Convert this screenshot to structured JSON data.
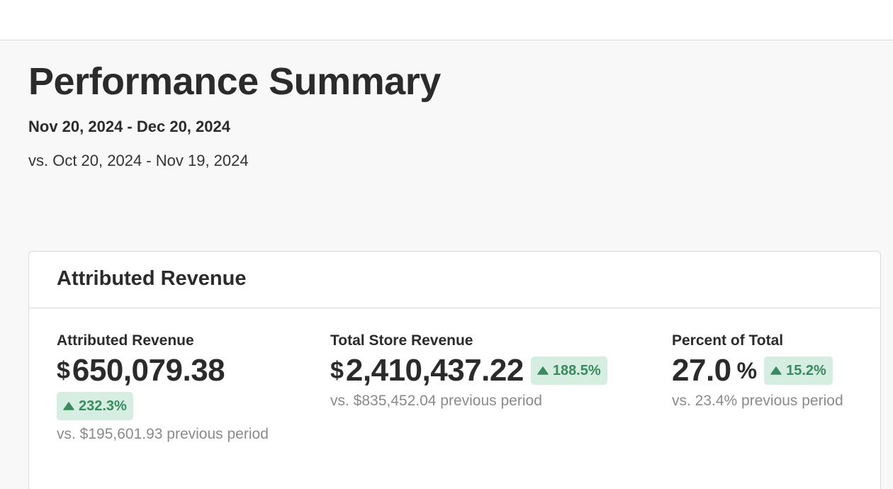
{
  "header": {
    "title": "Performance Summary",
    "date_range": "Nov 20, 2024 - Dec 20, 2024",
    "compare_range": "vs. Oct 20, 2024 - Nov 19, 2024"
  },
  "card": {
    "title": "Attributed Revenue",
    "metrics": [
      {
        "label": "Attributed Revenue",
        "currency": "$",
        "value": "650,079.38",
        "change": "232.3%",
        "previous": "vs. $195,601.93 previous period"
      },
      {
        "label": "Total Store Revenue",
        "currency": "$",
        "value": "2,410,437.22",
        "change": "188.5%",
        "previous": "vs. $835,452.04 previous period"
      },
      {
        "label": "Percent of Total",
        "value": "27.0",
        "unit": "%",
        "change": "15.2%",
        "previous": "vs. 23.4% previous period"
      }
    ]
  },
  "colors": {
    "positive_text": "#3a8a5f",
    "positive_bg": "#d6ede2"
  },
  "icons": {
    "change": "caret-up-icon"
  }
}
